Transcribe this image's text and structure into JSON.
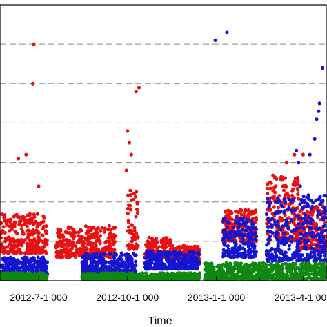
{
  "chart_data": {
    "type": "scatter",
    "xlabel": "Time",
    "x_tick_labels": [
      "2012-7-1 000",
      "2012-10-1 000",
      "2013-1-1 000",
      "2013-4-1 000"
    ],
    "x_tick_dates": [
      "2012-07-01",
      "2012-10-01",
      "2013-01-01",
      "2013-04-01"
    ],
    "xlim": [
      "2012-05-22",
      "2013-04-25"
    ],
    "ylim": [
      0,
      7
    ],
    "grid": "horizontal-dashed",
    "gridlines_y": [
      1,
      2,
      3,
      4,
      5,
      6
    ],
    "colors": {
      "red_series": "#e81010",
      "blue_series": "#1515d0",
      "green_series": "#118811",
      "grid": "#888888"
    },
    "series": [
      {
        "color": "#e81010",
        "clusters": [
          {
            "start": "2012-05-22",
            "end": "2012-07-10",
            "low": 0.7,
            "high": 1.7
          },
          {
            "start": "2012-07-19",
            "end": "2012-09-19",
            "low": 0.6,
            "high": 1.4
          },
          {
            "start": "2012-10-01",
            "end": "2012-10-12",
            "low": 0.8,
            "high": 2.3
          },
          {
            "start": "2012-10-19",
            "end": "2012-11-15",
            "low": 0.6,
            "high": 1.1
          },
          {
            "start": "2012-11-15",
            "end": "2012-12-15",
            "low": 0.5,
            "high": 0.9
          },
          {
            "start": "2013-01-08",
            "end": "2013-02-12",
            "low": 1.0,
            "high": 1.8
          },
          {
            "start": "2013-02-22",
            "end": "2013-03-28",
            "low": 1.0,
            "high": 2.7
          },
          {
            "start": "2013-03-28",
            "end": "2013-04-25",
            "low": 0.8,
            "high": 1.9
          }
        ],
        "points": [
          {
            "x": "2012-06-26",
            "y": 6.0
          },
          {
            "x": "2012-06-25",
            "y": 5.0
          },
          {
            "x": "2012-06-18",
            "y": 3.2
          },
          {
            "x": "2012-06-10",
            "y": 3.1
          },
          {
            "x": "2012-07-01",
            "y": 2.4
          },
          {
            "x": "2012-10-01",
            "y": 3.8
          },
          {
            "x": "2012-10-03",
            "y": 3.5
          },
          {
            "x": "2012-10-10",
            "y": 4.8
          },
          {
            "x": "2012-10-13",
            "y": 4.9
          },
          {
            "x": "2012-10-05",
            "y": 3.2
          },
          {
            "x": "2012-09-30",
            "y": 2.8
          },
          {
            "x": "2013-03-23",
            "y": 3.2
          },
          {
            "x": "2013-03-15",
            "y": 3.0
          },
          {
            "x": "2013-04-01",
            "y": 3.2
          }
        ]
      },
      {
        "color": "#1515d0",
        "clusters": [
          {
            "start": "2012-05-22",
            "end": "2012-07-10",
            "low": 0.15,
            "high": 0.6
          },
          {
            "start": "2012-08-15",
            "end": "2012-10-10",
            "low": 0.2,
            "high": 0.7
          },
          {
            "start": "2012-10-19",
            "end": "2012-12-15",
            "low": 0.3,
            "high": 0.75
          },
          {
            "start": "2013-01-08",
            "end": "2013-02-12",
            "low": 0.6,
            "high": 1.6
          },
          {
            "start": "2013-02-22",
            "end": "2013-03-28",
            "low": 0.5,
            "high": 2.1
          },
          {
            "start": "2013-03-28",
            "end": "2013-04-25",
            "low": 0.5,
            "high": 2.2
          }
        ],
        "points": [
          {
            "x": "2012-12-31",
            "y": 6.1
          },
          {
            "x": "2013-01-12",
            "y": 6.3
          },
          {
            "x": "2013-04-21",
            "y": 5.4
          },
          {
            "x": "2013-04-18",
            "y": 4.5
          },
          {
            "x": "2013-04-17",
            "y": 4.3
          },
          {
            "x": "2013-04-13",
            "y": 3.6
          },
          {
            "x": "2013-04-08",
            "y": 3.2
          },
          {
            "x": "2013-03-25",
            "y": 3.3
          },
          {
            "x": "2013-03-27",
            "y": 3.0
          },
          {
            "x": "2013-04-15",
            "y": 4.1
          },
          {
            "x": "2013-03-29",
            "y": 2.4
          }
        ]
      },
      {
        "color": "#118811",
        "clusters": [
          {
            "start": "2012-05-22",
            "end": "2012-07-10",
            "low": 0.03,
            "high": 0.2
          },
          {
            "start": "2012-08-15",
            "end": "2012-12-15",
            "low": 0.03,
            "high": 0.2
          },
          {
            "start": "2012-12-20",
            "end": "2013-04-25",
            "low": 0.03,
            "high": 0.45
          }
        ],
        "points": []
      }
    ]
  }
}
